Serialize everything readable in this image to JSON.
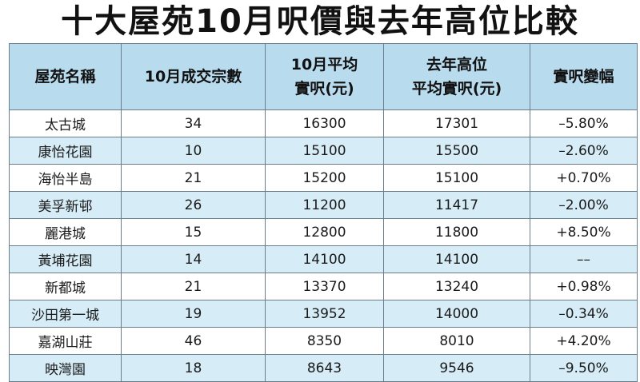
{
  "title": "十大屋苑10月呎價與去年高位比較",
  "headers": [
    [
      "屋苑名稱"
    ],
    [
      "10月成交宗數"
    ],
    [
      "10月平均",
      "實呎(元)"
    ],
    [
      "去年高位",
      "平均實呎(元)"
    ],
    [
      "實呎變幅"
    ]
  ],
  "rows": [
    [
      "太古城",
      "34",
      "16300",
      "17301",
      "–5.80%"
    ],
    [
      "康怡花園",
      "10",
      "15100",
      "15500",
      "–2.60%"
    ],
    [
      "海怡半島",
      "21",
      "15200",
      "15100",
      "+0.70%"
    ],
    [
      "美孚新邨",
      "26",
      "11200",
      "11417",
      "–2.00%"
    ],
    [
      "麗港城",
      "15",
      "12800",
      "11800",
      "+8.50%"
    ],
    [
      "黃埔花園",
      "14",
      "14100",
      "14100",
      "––"
    ],
    [
      "新都城",
      "21",
      "13370",
      "13240",
      "+0.98%"
    ],
    [
      "沙田第一城",
      "19",
      "13952",
      "14000",
      "–0.34%"
    ],
    [
      "嘉湖山莊",
      "46",
      "8350",
      "8010",
      "+4.20%"
    ],
    [
      "映灣園",
      "18",
      "8643",
      "9546",
      "–9.50%"
    ]
  ],
  "colors": {
    "header_bg": "#b9dbee",
    "stripe_bg": "#d6ecf7",
    "border": "#6a7d8a"
  }
}
